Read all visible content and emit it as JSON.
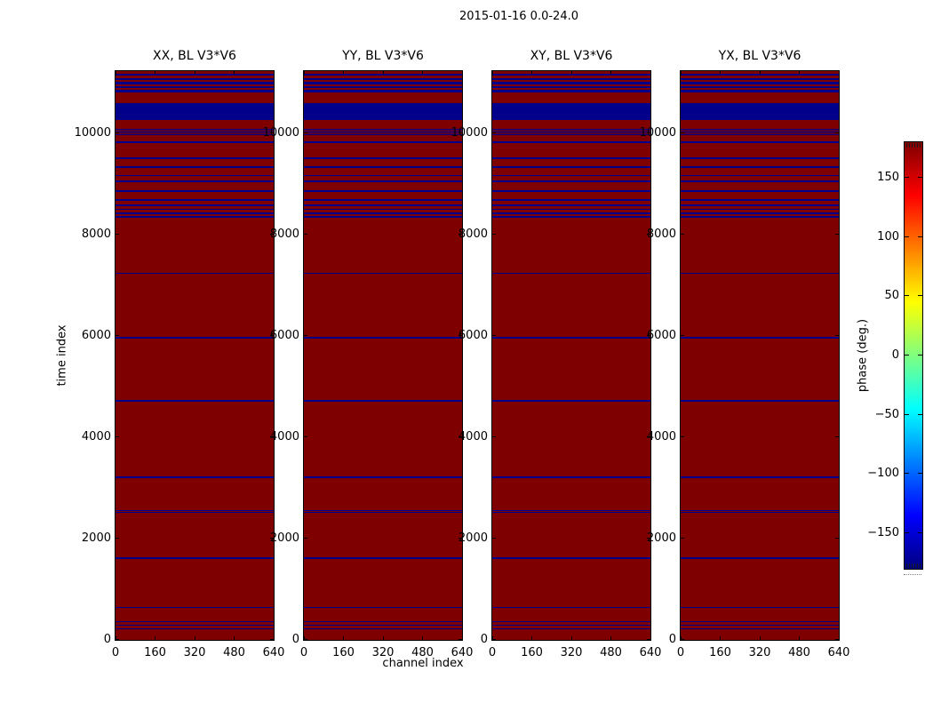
{
  "figure": {
    "title": "2015-01-16 0.0-24.0"
  },
  "chart_data": {
    "type": "heatmap",
    "title": "2015-01-16 0.0-24.0",
    "panels": [
      {
        "title": "XX, BL V3*V6",
        "polarization": "XX",
        "baseline": "V3*V6"
      },
      {
        "title": "YY, BL V3*V6",
        "polarization": "YY",
        "baseline": "V3*V6"
      },
      {
        "title": "XY, BL V3*V6",
        "polarization": "XY",
        "baseline": "V3*V6"
      },
      {
        "title": "YX, BL V3*V6",
        "polarization": "YX",
        "baseline": "V3*V6"
      }
    ],
    "x_axis": {
      "label": "channel index",
      "range": [
        0,
        640
      ],
      "ticks": [
        0,
        160,
        320,
        480,
        640
      ]
    },
    "y_axis": {
      "label": "time index",
      "range": [
        0,
        11228
      ],
      "ticks": [
        0,
        2000,
        4000,
        6000,
        8000,
        10000
      ]
    },
    "colorbar": {
      "label": "phase (deg.)",
      "range": [
        -180,
        180
      ],
      "colormap": "jet",
      "ticks": [
        {
          "value": 150,
          "label": "150"
        },
        {
          "value": 100,
          "label": "100"
        },
        {
          "value": 50,
          "label": "50"
        },
        {
          "value": 0,
          "label": "0"
        },
        {
          "value": -50,
          "label": "−50"
        },
        {
          "value": -100,
          "label": "−100"
        },
        {
          "value": -150,
          "label": "−150"
        }
      ],
      "gradient_stops": [
        {
          "pos": 0,
          "color": "#800000"
        },
        {
          "pos": 12.5,
          "color": "#ff0000"
        },
        {
          "pos": 37.5,
          "color": "#ffff00"
        },
        {
          "pos": 62.5,
          "color": "#00ffff"
        },
        {
          "pos": 87.5,
          "color": "#0000ff"
        },
        {
          "pos": 100,
          "color": "#000080"
        }
      ]
    },
    "values": {
      "background_phase_deg": 180,
      "band_phase_deg": -180,
      "background_color": "#7f0000",
      "band_color": "#00008a"
    },
    "band_rows_time_index": [
      [
        11135,
        11183
      ],
      [
        11052,
        11092
      ],
      [
        10968,
        11010
      ],
      [
        10893,
        10933
      ],
      [
        10810,
        10853
      ],
      [
        10258,
        10596
      ],
      [
        10062,
        10087
      ],
      [
        10027,
        10052
      ],
      [
        9992,
        10017
      ],
      [
        9957,
        9982
      ],
      [
        9807,
        9850
      ],
      [
        9492,
        9522
      ],
      [
        9317,
        9347
      ],
      [
        9152,
        9182
      ],
      [
        9035,
        9065
      ],
      [
        8847,
        8877
      ],
      [
        8672,
        8702
      ],
      [
        8567,
        8597
      ],
      [
        8485,
        8515
      ],
      [
        8410,
        8440
      ],
      [
        8335,
        8365
      ],
      [
        7221,
        7248
      ],
      [
        5953,
        5980
      ],
      [
        4702,
        4729
      ],
      [
        3193,
        3220
      ],
      [
        2543,
        2568
      ],
      [
        2500,
        2525
      ],
      [
        1596,
        1623
      ],
      [
        625,
        652
      ],
      [
        345,
        372
      ],
      [
        275,
        302
      ],
      [
        205,
        232
      ]
    ],
    "bands_identical_in_all_panels": true
  }
}
